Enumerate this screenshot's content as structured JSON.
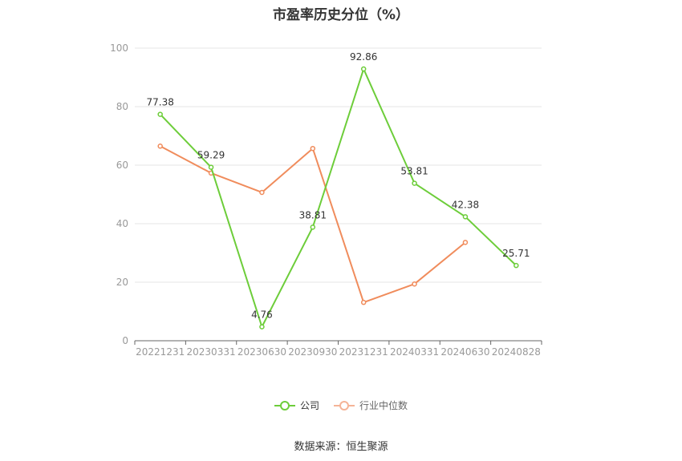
{
  "title": "市盈率历史分位（%）",
  "source": "数据来源：恒生聚源",
  "legend": {
    "company": "公司",
    "industry": "行业中位数"
  },
  "colors": {
    "company": "#6dcd3a",
    "industry": "#f08c5c",
    "grid": "#e6e6e6",
    "axis": "#999999"
  },
  "chart_data": {
    "type": "line",
    "title": "市盈率历史分位（%）",
    "categories": [
      "20221231",
      "20230331",
      "20230630",
      "20230930",
      "20231231",
      "20240331",
      "20240630",
      "20240828"
    ],
    "ylim": [
      0,
      100
    ],
    "yticks": [
      0,
      20,
      40,
      60,
      80,
      100
    ],
    "grid": true,
    "legend_position": "bottom",
    "series": [
      {
        "name": "公司",
        "values": [
          77.38,
          59.29,
          4.76,
          38.81,
          92.86,
          53.81,
          42.38,
          25.71
        ],
        "labels": [
          "77.38",
          "59.29",
          "4.76",
          "38.81",
          "92.86",
          "53.81",
          "42.38",
          "25.71"
        ]
      },
      {
        "name": "行业中位数",
        "values": [
          66.5,
          57.3,
          50.7,
          65.7,
          13.1,
          19.4,
          33.6,
          null
        ]
      }
    ]
  }
}
